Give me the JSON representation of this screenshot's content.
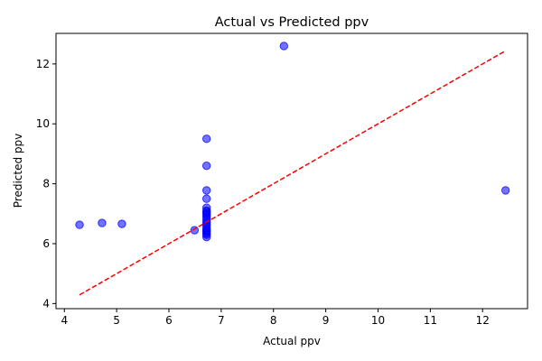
{
  "chart_data": {
    "type": "scatter",
    "title": "Actual vs Predicted ppv",
    "xlabel": "Actual ppv",
    "ylabel": "Predicted ppv",
    "xlim": [
      3.84,
      12.86
    ],
    "ylim": [
      3.83,
      13.02
    ],
    "xticks": [
      4,
      5,
      6,
      7,
      8,
      9,
      10,
      11,
      12
    ],
    "yticks": [
      4,
      6,
      8,
      10,
      12
    ],
    "grid": false,
    "colors": {
      "points": "#0000ff",
      "reference_line": "#ff0000"
    },
    "series": [
      {
        "kind": "points",
        "x": [
          4.29,
          4.72,
          5.1,
          6.49,
          6.72,
          6.72,
          6.72,
          6.72,
          6.72,
          6.72,
          6.72,
          6.72,
          6.72,
          6.72,
          6.72,
          6.72,
          6.72,
          6.72,
          6.72,
          6.72,
          6.72,
          6.72,
          6.72,
          6.72,
          8.2,
          12.44
        ],
        "y": [
          6.63,
          6.69,
          6.66,
          6.45,
          9.5,
          8.6,
          7.78,
          7.5,
          7.2,
          7.1,
          7.05,
          7.0,
          6.95,
          6.88,
          6.8,
          6.72,
          6.65,
          6.58,
          6.5,
          6.44,
          6.4,
          6.35,
          6.3,
          6.22,
          12.6,
          7.78
        ]
      },
      {
        "kind": "reference-line",
        "x": [
          4.29,
          12.44
        ],
        "y": [
          4.29,
          12.44
        ]
      }
    ]
  }
}
